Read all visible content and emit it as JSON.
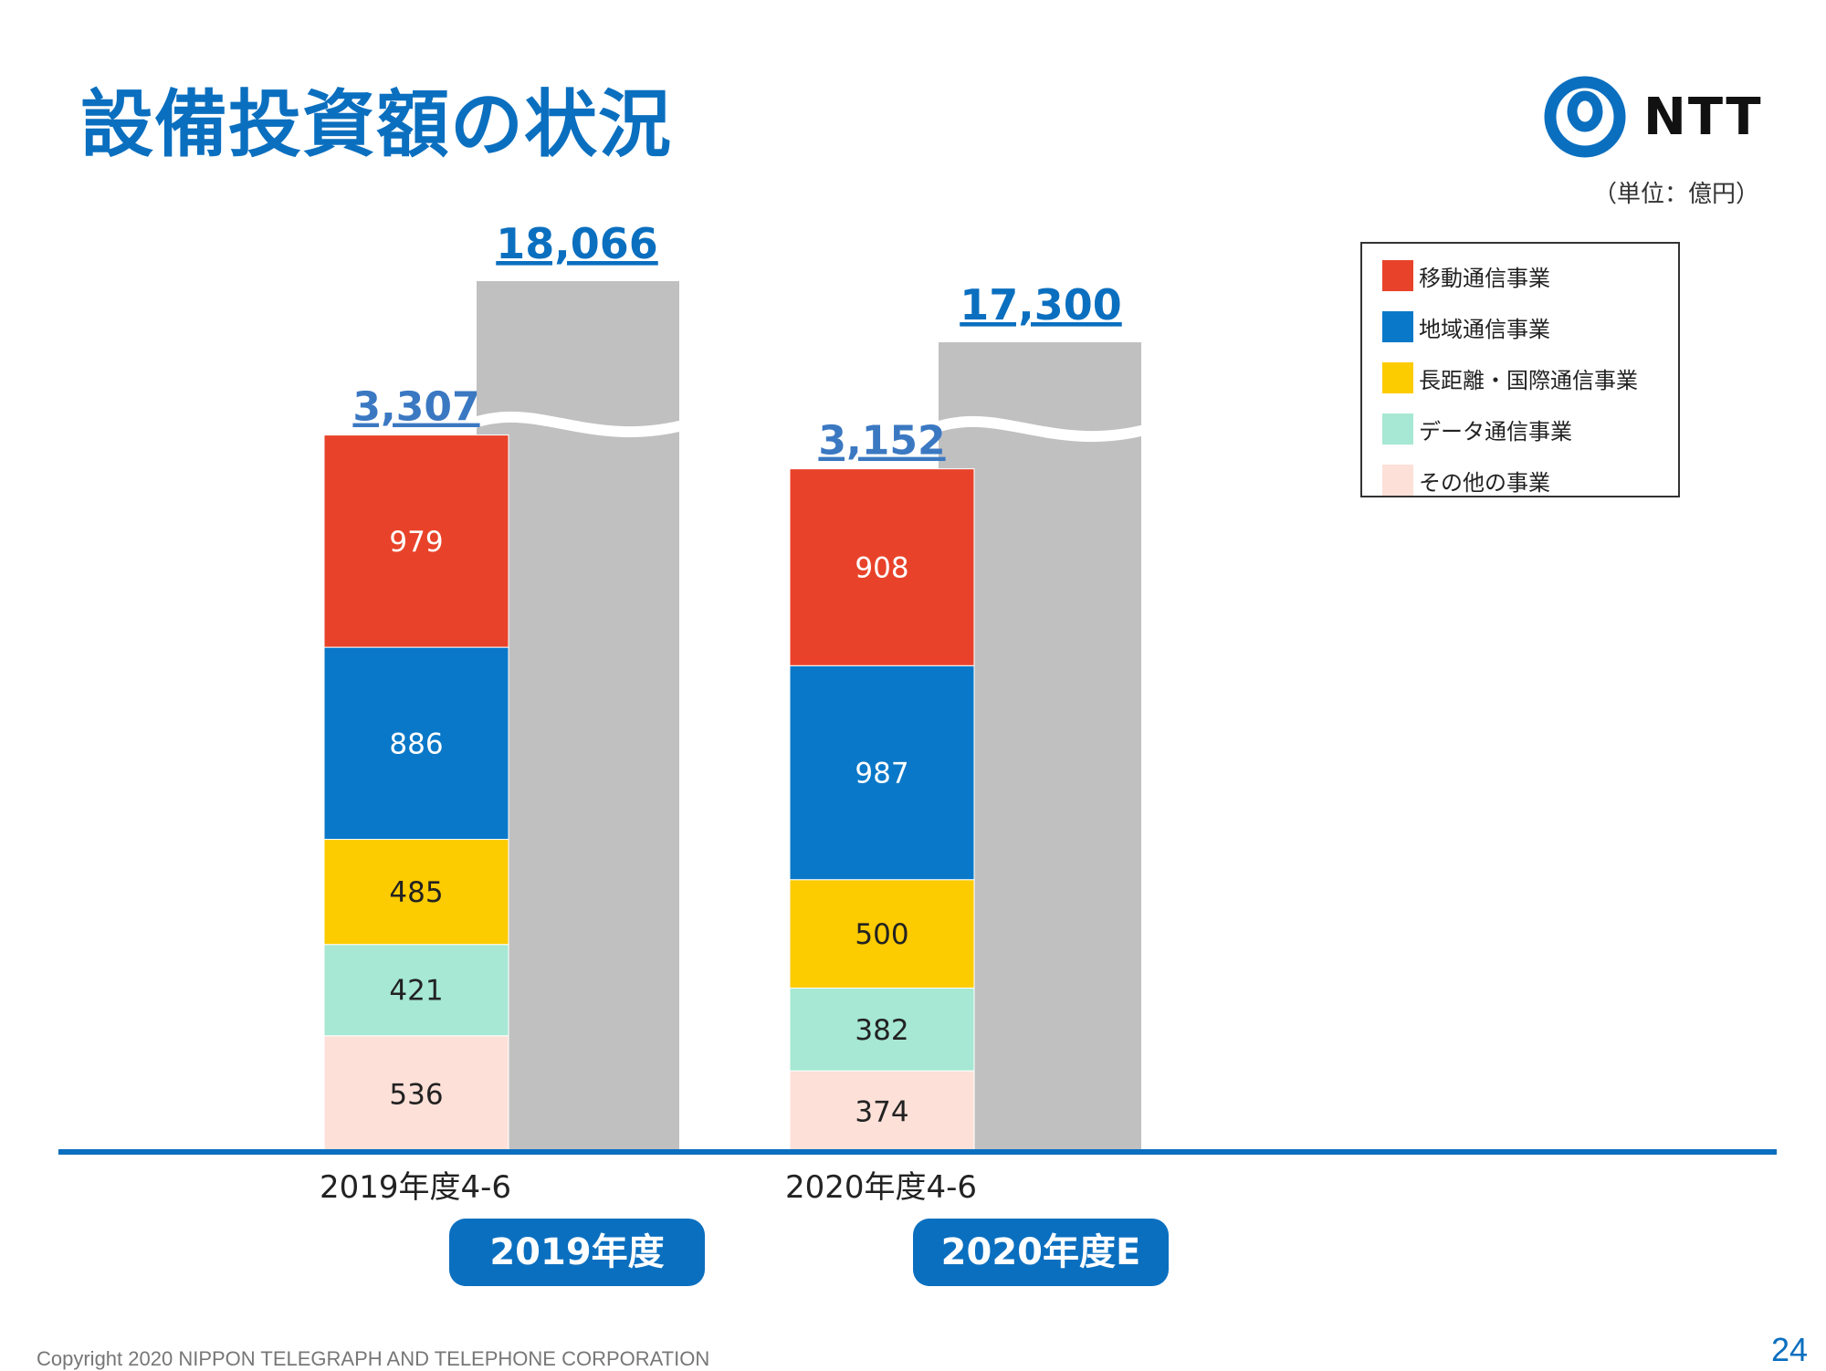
{
  "title": "設備投資額の状況",
  "logo": {
    "text": "NTT",
    "icon": "ntt-logo-icon",
    "color": "#0b6fbf"
  },
  "unit_label": "（単位：億円）",
  "legend": [
    {
      "label": "移動通信事業",
      "color": "#e8432a"
    },
    {
      "label": "地域通信事業",
      "color": "#0a78c8"
    },
    {
      "label": "長距離・国際通信事業",
      "color": "#fccb00"
    },
    {
      "label": "データ通信事業",
      "color": "#a6e8d3"
    },
    {
      "label": "その他の事業",
      "color": "#fde0d8"
    }
  ],
  "chart_data": {
    "type": "bar",
    "stacking_order": "bottom-to-top",
    "categories": [
      "2019年度4-6",
      "2020年度4-6"
    ],
    "series": [
      {
        "name": "その他の事業",
        "color": "#fde0d8",
        "values": [
          536,
          374
        ]
      },
      {
        "name": "データ通信事業",
        "color": "#a6e8d3",
        "values": [
          421,
          382
        ]
      },
      {
        "name": "長距離・国際通信事業",
        "color": "#fccb00",
        "values": [
          485,
          500
        ]
      },
      {
        "name": "地域通信事業",
        "color": "#0a78c8",
        "values": [
          886,
          987
        ]
      },
      {
        "name": "移動通信事業",
        "color": "#e8432a",
        "values": [
          979,
          908
        ]
      }
    ],
    "totals": [
      "3,307",
      "3,152"
    ],
    "annual": [
      {
        "label": "2019年度",
        "total": "18,066",
        "value": 18066
      },
      {
        "label": "2020年度E",
        "total": "17,300",
        "value": 17300
      }
    ],
    "annual_bar_color": "#c0c0c0",
    "axis_break": true,
    "baseline_color": "#0b6fbf"
  },
  "footer": {
    "copyright": "Copyright 2020 NIPPON TELEGRAPH AND TELEPHONE CORPORATION",
    "page_number": "24"
  }
}
